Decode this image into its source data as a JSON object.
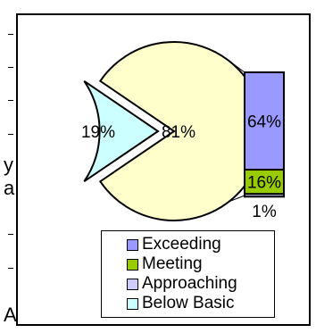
{
  "chart_data": {
    "type": "bar-of-pie",
    "pie": {
      "slices": [
        {
          "label": "19%",
          "value": 19,
          "color": "#ccffff",
          "exploded": true
        },
        {
          "label": "81%",
          "value": 81,
          "color": "#ffffcc",
          "exploded": false
        }
      ]
    },
    "bar": {
      "segments": [
        {
          "label": "64%",
          "value": 64,
          "color": "#9999ff"
        },
        {
          "label": "16%",
          "value": 16,
          "color": "#99cc00"
        },
        {
          "label": "1%",
          "value": 1,
          "color": "#ccccff"
        }
      ]
    },
    "legend": {
      "placement": "bottom",
      "entries": [
        {
          "label": "Exceeding",
          "color": "#9999ff"
        },
        {
          "label": "Meeting",
          "color": "#99cc00"
        },
        {
          "label": "Approaching",
          "color": "#ccccff"
        },
        {
          "label": "Below Basic",
          "color": "#ccffff"
        }
      ]
    }
  }
}
